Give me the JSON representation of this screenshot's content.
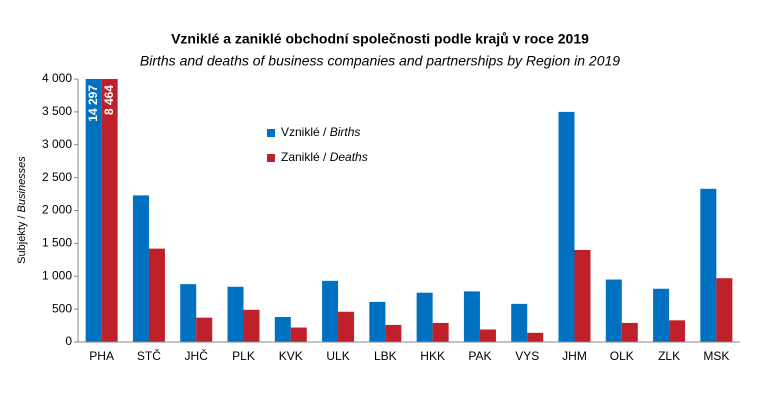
{
  "chart_data": {
    "type": "bar",
    "title": "Vzniklé a zaniklé obchodní společnosti podle krajů v roce 2019",
    "subtitle": "Births and deaths of business companies and partnerships by Region in 2019",
    "y_label": "Subjekty / Businesses",
    "categories": [
      "PHA",
      "STČ",
      "JHČ",
      "PLK",
      "KVK",
      "ULK",
      "LBK",
      "HKK",
      "PAK",
      "VYS",
      "JHM",
      "OLK",
      "ZLK",
      "MSK"
    ],
    "series": [
      {
        "name": "Vzniklé / Births",
        "color": "#0070c0",
        "values": [
          14297,
          2230,
          880,
          840,
          380,
          930,
          610,
          750,
          770,
          580,
          3500,
          950,
          810,
          2330
        ],
        "value_labels": [
          "14 297",
          null,
          null,
          null,
          null,
          null,
          null,
          null,
          null,
          null,
          null,
          null,
          null,
          null
        ]
      },
      {
        "name": "Zaniklé / Deaths",
        "color": "#c0202a",
        "values": [
          8464,
          1420,
          370,
          490,
          220,
          460,
          260,
          290,
          190,
          140,
          1400,
          290,
          330,
          970
        ],
        "value_labels": [
          "8 464",
          null,
          null,
          null,
          null,
          null,
          null,
          null,
          null,
          null,
          null,
          null,
          null,
          null
        ]
      }
    ],
    "ylim": [
      0,
      4000
    ],
    "yticks": [
      0,
      500,
      {
        "value": 1000,
        "label": "1 000"
      },
      {
        "value": 1500,
        "label": "1 500"
      },
      {
        "value": 2000,
        "label": "2 000"
      },
      {
        "value": 2500,
        "label": "2 500"
      },
      {
        "value": 3000,
        "label": "3 000"
      },
      {
        "value": 3500,
        "label": "3 500"
      },
      {
        "value": 4000,
        "label": "4 000"
      }
    ],
    "grid": false
  }
}
